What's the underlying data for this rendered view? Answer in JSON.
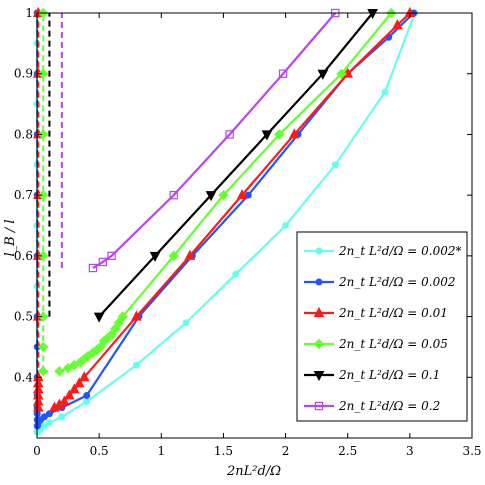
{
  "chart_data": {
    "type": "line",
    "xlabel": "2nL²d/Ω",
    "ylabel": "l_B / l",
    "xlim": [
      0,
      3.5
    ],
    "ylim": [
      0.3,
      1.0
    ],
    "xticks": [
      "0",
      "0.5",
      "1",
      "1.5",
      "2",
      "2.5",
      "3",
      "3.5"
    ],
    "yticks": [
      "0.4",
      "0.5",
      "0.6",
      "0.7",
      "0.8",
      "0.9",
      "1"
    ],
    "grid": false,
    "legend_position": "lower-right",
    "series": [
      {
        "name": "2n_t L²d/Ω = 0.002*",
        "color": "#66ffee",
        "marker": "circle",
        "branch": {
          "x": [
            0.01,
            0.03,
            0.06,
            0.1,
            0.2,
            0.4,
            0.8,
            1.2,
            1.6,
            2.0,
            2.4,
            2.8,
            3.04
          ],
          "y": [
            0.31,
            0.315,
            0.32,
            0.325,
            0.335,
            0.36,
            0.42,
            0.49,
            0.57,
            0.65,
            0.75,
            0.87,
            1.0
          ]
        },
        "vertical": {
          "x": 0.0,
          "y": [
            0.31,
            0.35,
            0.4,
            0.45,
            0.5,
            0.55,
            0.6,
            0.65,
            0.7,
            0.75,
            0.8,
            0.85,
            0.9,
            0.95,
            1.0
          ]
        }
      },
      {
        "name": "2n_t L²d/Ω = 0.002",
        "color": "#2255ff",
        "marker": "circle",
        "branch": {
          "x": [
            0.004,
            0.01,
            0.03,
            0.06,
            0.1,
            0.2,
            0.4,
            0.82,
            1.25,
            1.7,
            2.1,
            2.5,
            2.83,
            3.03
          ],
          "y": [
            0.32,
            0.325,
            0.33,
            0.335,
            0.34,
            0.35,
            0.37,
            0.5,
            0.6,
            0.7,
            0.8,
            0.9,
            0.96,
            1.0
          ]
        },
        "vertical": {
          "x": 0.002,
          "y": [
            0.32,
            0.33,
            0.34,
            0.35,
            0.37,
            0.4,
            0.45,
            0.5,
            0.6,
            0.7,
            0.8,
            0.9,
            1.0
          ]
        }
      },
      {
        "name": "2n_t L²d/Ω = 0.01",
        "color": "#ff1a1a",
        "marker": "triangle-up",
        "branch": {
          "x": [
            0.14,
            0.18,
            0.22,
            0.26,
            0.3,
            0.34,
            0.38,
            0.8,
            1.23,
            1.65,
            2.07,
            2.5,
            2.9,
            3.0
          ],
          "y": [
            0.35,
            0.355,
            0.36,
            0.37,
            0.38,
            0.39,
            0.4,
            0.5,
            0.6,
            0.7,
            0.8,
            0.9,
            0.98,
            1.0
          ]
        },
        "vertical": {
          "x": 0.01,
          "y": [
            0.35,
            0.36,
            0.37,
            0.38,
            0.39,
            0.4,
            0.5,
            0.6,
            0.7,
            0.8,
            0.9,
            1.0
          ]
        }
      },
      {
        "name": "2n_t L²d/Ω = 0.05",
        "color": "#66ff33",
        "marker": "diamond",
        "branch": {
          "x": [
            0.18,
            0.25,
            0.3,
            0.35,
            0.38,
            0.41,
            0.45,
            0.48,
            0.51,
            0.54,
            0.57,
            0.6,
            0.63,
            0.66,
            0.69,
            1.1,
            1.5,
            1.95,
            2.45,
            2.85
          ],
          "y": [
            0.41,
            0.415,
            0.42,
            0.425,
            0.43,
            0.435,
            0.44,
            0.445,
            0.45,
            0.46,
            0.465,
            0.47,
            0.48,
            0.49,
            0.5,
            0.6,
            0.7,
            0.8,
            0.9,
            1.0
          ]
        },
        "vertical": {
          "x": 0.05,
          "y": [
            0.41,
            0.45,
            0.5,
            0.6,
            0.7,
            0.8,
            0.9,
            1.0
          ]
        }
      },
      {
        "name": "2n_t L²d/Ω = 0.1",
        "color": "#000000",
        "marker": "triangle-down",
        "branch": {
          "x": [
            0.5,
            0.95,
            1.4,
            1.85,
            2.3,
            2.7
          ],
          "y": [
            0.5,
            0.6,
            0.7,
            0.8,
            0.9,
            1.0
          ]
        },
        "vertical": {
          "x": 0.1,
          "y": [
            0.5,
            1.0
          ]
        }
      },
      {
        "name": "2n_t L²d/Ω = 0.2",
        "color": "#bb44ee",
        "marker": "square",
        "branch": {
          "x": [
            0.45,
            0.53,
            0.6,
            1.1,
            1.55,
            1.98,
            2.4
          ],
          "y": [
            0.58,
            0.59,
            0.6,
            0.7,
            0.8,
            0.9,
            1.0
          ]
        },
        "vertical": {
          "x": 0.2,
          "y": [
            0.58,
            1.0
          ]
        }
      }
    ]
  }
}
